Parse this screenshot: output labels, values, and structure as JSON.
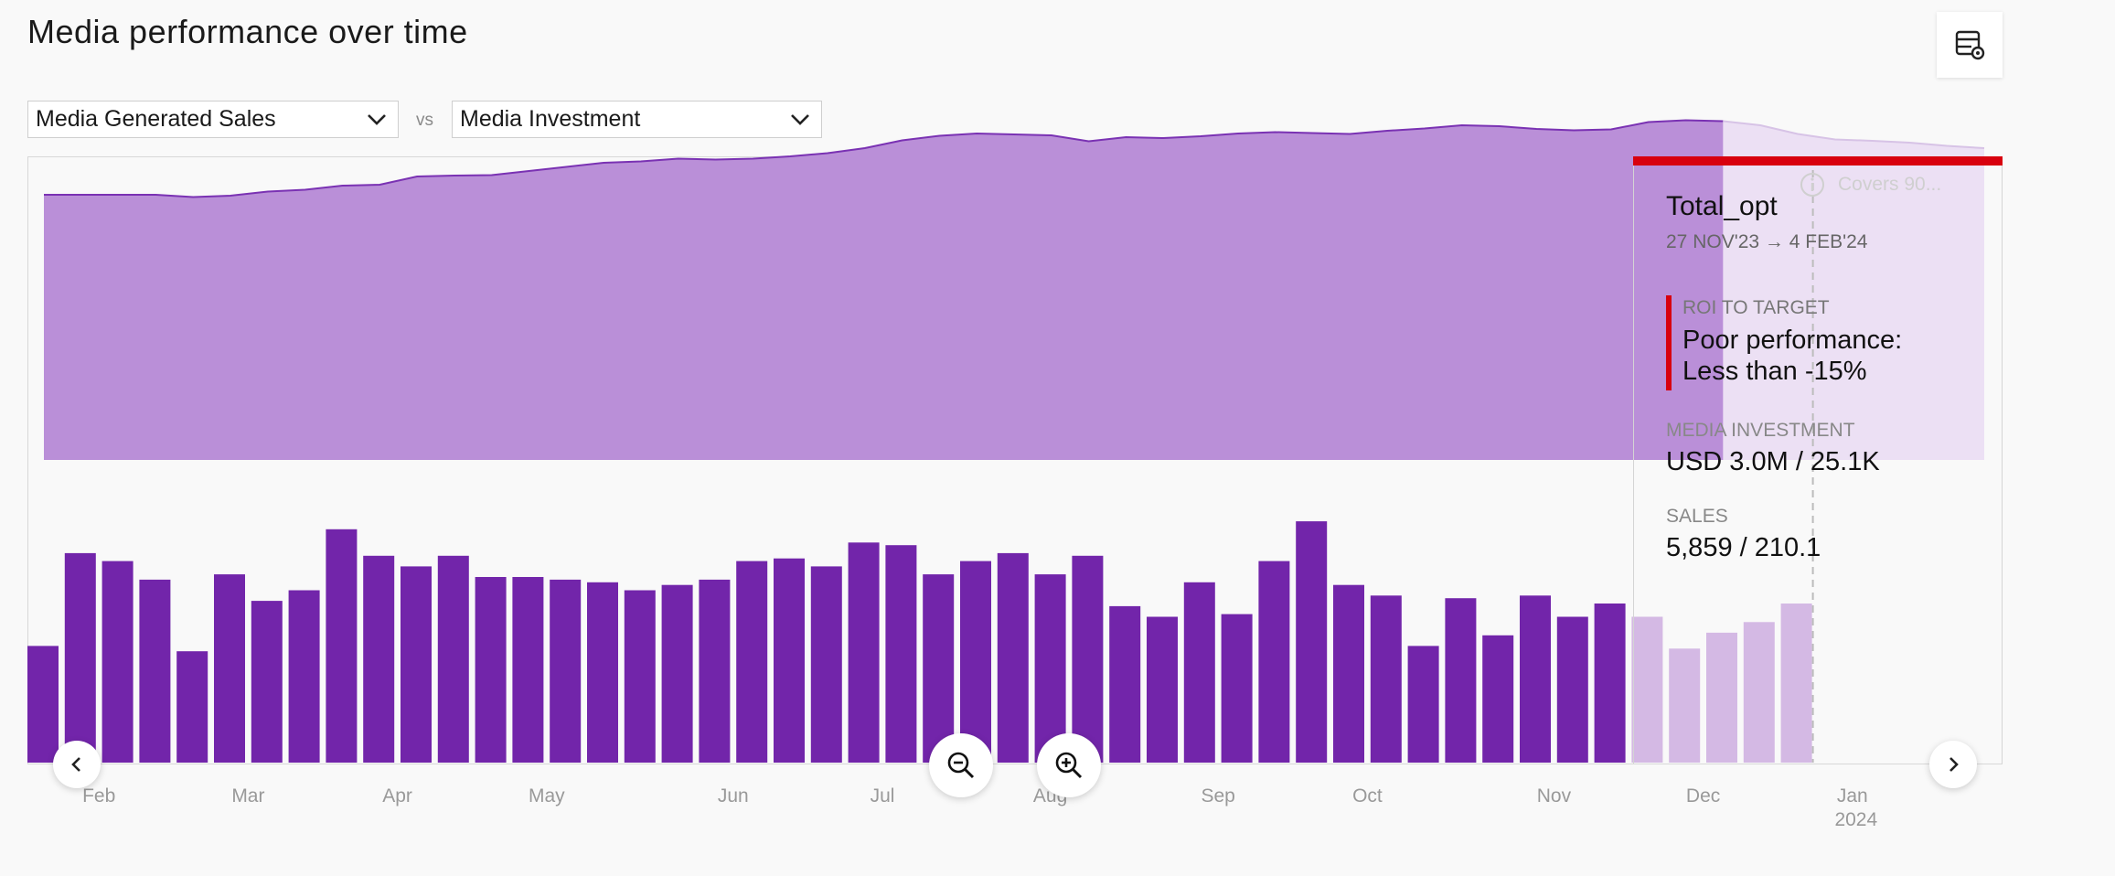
{
  "header": {
    "title": "Media performance over time",
    "settings_icon": "table-settings-icon"
  },
  "controls": {
    "metric_primary": "Media Generated Sales",
    "vs_label": "vs",
    "metric_secondary": "Media Investment"
  },
  "buttons": {
    "prev_icon": "chevron-left-icon",
    "next_icon": "chevron-right-icon",
    "zoom_out_icon": "zoom-out-icon",
    "zoom_in_icon": "zoom-in-icon"
  },
  "coverage": {
    "label": "Covers 90..."
  },
  "tooltip": {
    "name": "Total_opt",
    "dates": "27 NOV'23 → 4 FEB'24",
    "roi_label": "ROI TO TARGET",
    "roi_value": "Poor performance: Less than -15%",
    "roi_color": "#d8000e",
    "investment_label": "MEDIA INVESTMENT",
    "investment_value": "USD 3.0M / 25.1K",
    "sales_label": "SALES",
    "sales_value": "5,859 / 210.1"
  },
  "chart_data": {
    "type": "bar",
    "colors": {
      "bar": "#7225aa",
      "bar_highlight": "#d4b9e4",
      "area": "#ba8fd8",
      "area_highlight": "#ece0f4",
      "area_line": "#7a32b3"
    },
    "x_ticks": [
      {
        "label": "Feb",
        "index": 1.5
      },
      {
        "label": "Mar",
        "index": 5.5
      },
      {
        "label": "Apr",
        "index": 9.5
      },
      {
        "label": "May",
        "index": 13.5
      },
      {
        "label": "Jun",
        "index": 18.5
      },
      {
        "label": "Jul",
        "index": 22.5
      },
      {
        "label": "Aug",
        "index": 27
      },
      {
        "label": "Sep",
        "index": 31.5
      },
      {
        "label": "Oct",
        "index": 35.5
      },
      {
        "label": "Nov",
        "index": 40.5
      },
      {
        "label": "Dec",
        "index": 44.5
      },
      {
        "label": "Jan",
        "index": 48.5,
        "sublabel": "2024"
      }
    ],
    "bars": [
      44,
      79,
      76,
      69,
      42,
      71,
      61,
      65,
      88,
      78,
      74,
      78,
      70,
      70,
      69,
      68,
      65,
      67,
      69,
      76,
      77,
      74,
      83,
      82,
      71,
      76,
      79,
      71,
      78,
      59,
      55,
      68,
      56,
      76,
      91,
      67,
      63,
      44,
      62,
      48,
      63,
      55,
      60,
      55,
      43,
      49,
      53,
      60
    ],
    "bars_highlight_from": 43,
    "area_ylim": [
      0,
      100
    ],
    "area": [
      [
        0,
        58
      ],
      [
        3,
        58
      ],
      [
        4,
        57.5
      ],
      [
        5,
        57.8
      ],
      [
        6,
        58.7
      ],
      [
        7,
        59.1
      ],
      [
        8,
        60
      ],
      [
        9,
        60.2
      ],
      [
        10,
        62
      ],
      [
        11,
        62.2
      ],
      [
        12,
        62.3
      ],
      [
        13,
        63.2
      ],
      [
        14,
        64.1
      ],
      [
        15,
        65
      ],
      [
        16,
        65.3
      ],
      [
        17,
        65.9
      ],
      [
        18,
        65.7
      ],
      [
        19,
        65.9
      ],
      [
        20,
        66.4
      ],
      [
        21,
        67.1
      ],
      [
        22,
        68.2
      ],
      [
        23,
        69.9
      ],
      [
        24,
        70.9
      ],
      [
        25,
        71.4
      ],
      [
        26,
        71.2
      ],
      [
        27,
        71.0
      ],
      [
        28,
        69.7
      ],
      [
        29,
        70.6
      ],
      [
        30,
        70.4
      ],
      [
        31,
        70.8
      ],
      [
        32,
        71.4
      ],
      [
        33,
        71.7
      ],
      [
        34,
        71.5
      ],
      [
        35,
        71.3
      ],
      [
        36,
        72
      ],
      [
        37,
        72.5
      ],
      [
        38,
        73.2
      ],
      [
        39,
        73
      ],
      [
        40,
        72.4
      ],
      [
        41,
        72.1
      ],
      [
        42,
        72.3
      ],
      [
        43,
        73.9
      ],
      [
        44,
        74.3
      ],
      [
        45,
        74.1
      ],
      [
        46,
        73.2
      ],
      [
        47,
        71.3
      ],
      [
        48,
        70.1
      ],
      [
        49,
        69.8
      ],
      [
        50,
        69.4
      ],
      [
        51,
        68.7
      ],
      [
        52,
        68.2
      ]
    ],
    "area_highlight_from": 43
  }
}
